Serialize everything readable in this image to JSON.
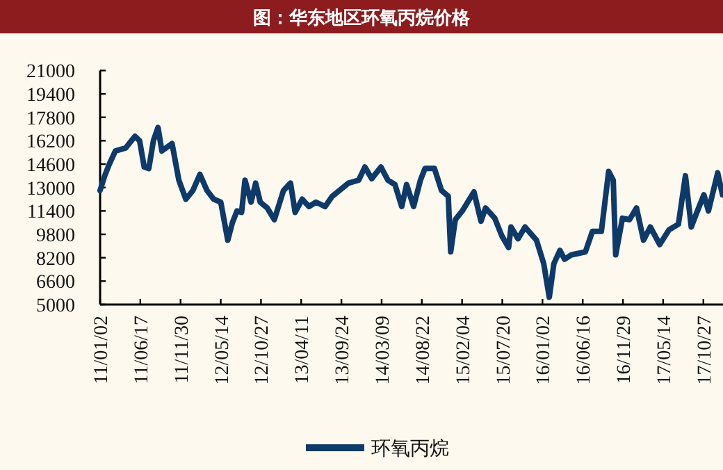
{
  "chart_data": {
    "type": "line",
    "title": "图：华东地区环氧丙烷价格",
    "legend": "bottom",
    "grid": false,
    "marker": "none",
    "line_style": "solid",
    "xlim": [
      "2011-01-02",
      "2018-01-16"
    ],
    "xticks": [
      {
        "value": "2011-01-02",
        "label": "11/01/02"
      },
      {
        "value": "2011-06-17",
        "label": "11/06/17"
      },
      {
        "value": "2011-11-30",
        "label": "11/11/30"
      },
      {
        "value": "2012-05-14",
        "label": "12/05/14"
      },
      {
        "value": "2012-10-27",
        "label": "12/10/27"
      },
      {
        "value": "2013-04-11",
        "label": "13/04/11"
      },
      {
        "value": "2013-09-24",
        "label": "13/09/24"
      },
      {
        "value": "2014-03-09",
        "label": "14/03/09"
      },
      {
        "value": "2014-08-22",
        "label": "14/08/22"
      },
      {
        "value": "2015-02-04",
        "label": "15/02/04"
      },
      {
        "value": "2015-07-20",
        "label": "15/07/20"
      },
      {
        "value": "2016-01-02",
        "label": "16/01/02"
      },
      {
        "value": "2016-06-16",
        "label": "16/06/16"
      },
      {
        "value": "2016-11-29",
        "label": "16/11/29"
      },
      {
        "value": "2017-05-14",
        "label": "17/05/14"
      },
      {
        "value": "2017-10-27",
        "label": "17/10/27"
      }
    ],
    "ylim": [
      5000,
      21000
    ],
    "yticks": [
      5000,
      6600,
      8200,
      9800,
      11400,
      13000,
      14600,
      16200,
      17800,
      19400,
      21000
    ],
    "x": [
      "2011-01-02",
      "2011-01-21",
      "2011-02-09",
      "2011-03-06",
      "2011-04-17",
      "2011-05-26",
      "2011-06-14",
      "2011-07-03",
      "2011-07-22",
      "2011-08-10",
      "2011-08-29",
      "2011-09-14",
      "2011-10-26",
      "2011-11-23",
      "2011-12-22",
      "2012-01-20",
      "2012-02-18",
      "2012-03-18",
      "2012-04-15",
      "2012-05-14",
      "2012-06-12",
      "2012-07-01",
      "2012-07-20",
      "2012-08-08",
      "2012-08-22",
      "2012-09-16",
      "2012-10-05",
      "2012-10-24",
      "2012-11-22",
      "2012-12-21",
      "2013-01-28",
      "2013-02-26",
      "2013-03-17",
      "2013-04-15",
      "2013-05-13",
      "2013-06-11",
      "2013-07-19",
      "2013-08-17",
      "2013-10-23",
      "2013-12-04",
      "2013-12-30",
      "2014-01-27",
      "2014-03-06",
      "2014-04-04",
      "2014-05-03",
      "2014-05-31",
      "2014-06-20",
      "2014-07-19",
      "2014-08-16",
      "2014-09-04",
      "2014-10-13",
      "2014-11-11",
      "2014-12-09",
      "2014-12-19",
      "2015-01-07",
      "2015-02-05",
      "2015-03-25",
      "2015-04-23",
      "2015-05-12",
      "2015-06-19",
      "2015-07-18",
      "2015-08-15",
      "2015-08-25",
      "2015-09-23",
      "2015-10-22",
      "2015-12-08",
      "2016-01-07",
      "2016-01-30",
      "2016-02-18",
      "2016-03-14",
      "2016-04-02",
      "2016-05-01",
      "2016-06-27",
      "2016-07-26",
      "2016-09-01",
      "2016-10-01",
      "2016-10-20",
      "2016-10-30",
      "2016-11-27",
      "2016-12-26",
      "2017-01-24",
      "2017-02-22",
      "2017-03-22",
      "2017-04-30",
      "2017-06-07",
      "2017-07-16",
      "2017-08-14",
      "2017-09-07",
      "2017-09-30",
      "2017-10-29",
      "2017-11-17",
      "2017-12-25",
      "2018-01-14"
    ],
    "series": [
      {
        "name": "环氧丙烷",
        "color": "#0e3a6a",
        "values": [
          12800,
          13800,
          14600,
          15500,
          15700,
          16500,
          16200,
          14400,
          14300,
          16200,
          17100,
          15500,
          16000,
          13500,
          12200,
          12800,
          13900,
          12800,
          12200,
          12000,
          9400,
          10600,
          11400,
          11300,
          13500,
          12000,
          13300,
          12000,
          11600,
          10800,
          12800,
          13300,
          11300,
          12200,
          11700,
          12000,
          11700,
          12400,
          13300,
          13500,
          14400,
          13600,
          14400,
          13500,
          13200,
          11700,
          13200,
          11700,
          13500,
          14300,
          14300,
          12800,
          12400,
          8600,
          10800,
          11400,
          12700,
          10700,
          11600,
          10900,
          9700,
          8900,
          10300,
          9500,
          10300,
          9400,
          7800,
          5500,
          7800,
          8700,
          8100,
          8400,
          8600,
          10000,
          10000,
          14100,
          13500,
          8400,
          10900,
          10800,
          11600,
          9400,
          10300,
          9100,
          10100,
          10500,
          13800,
          10300,
          11300,
          12500,
          11400,
          14000,
          12500
        ]
      }
    ]
  }
}
